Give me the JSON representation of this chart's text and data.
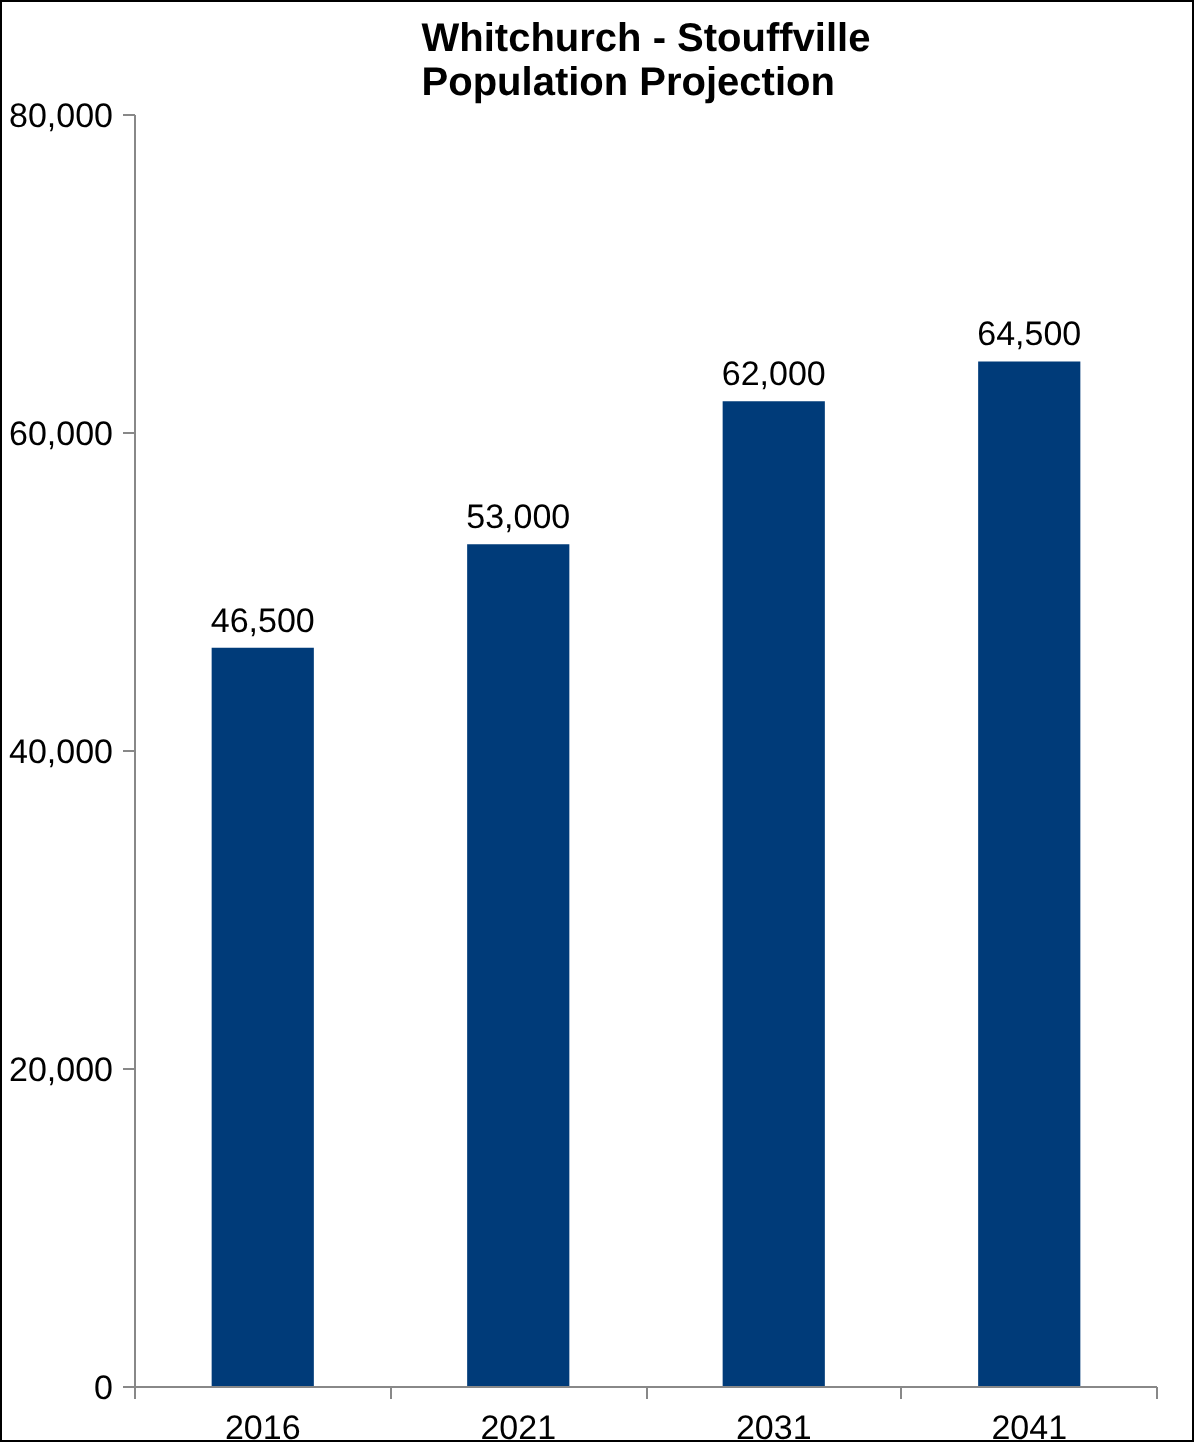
{
  "chart_data": {
    "type": "bar",
    "title": "Whitchurch - Stouffville Population Projection",
    "categories": [
      "2016",
      "2021",
      "2031",
      "2041"
    ],
    "values": [
      46500,
      53000,
      62000,
      64500
    ],
    "color": "#003b79",
    "ylim": [
      0,
      80000
    ],
    "yticks": [
      {
        "value": 0,
        "label": "0"
      },
      {
        "value": 20000,
        "label": "20,000"
      },
      {
        "value": 40000,
        "label": "40,000"
      },
      {
        "value": 60000,
        "label": "60,000"
      },
      {
        "value": 80000,
        "label": "80,000"
      }
    ],
    "value_labels": [
      "46,500",
      "53,000",
      "62,000",
      "64,500"
    ],
    "grid": false
  }
}
